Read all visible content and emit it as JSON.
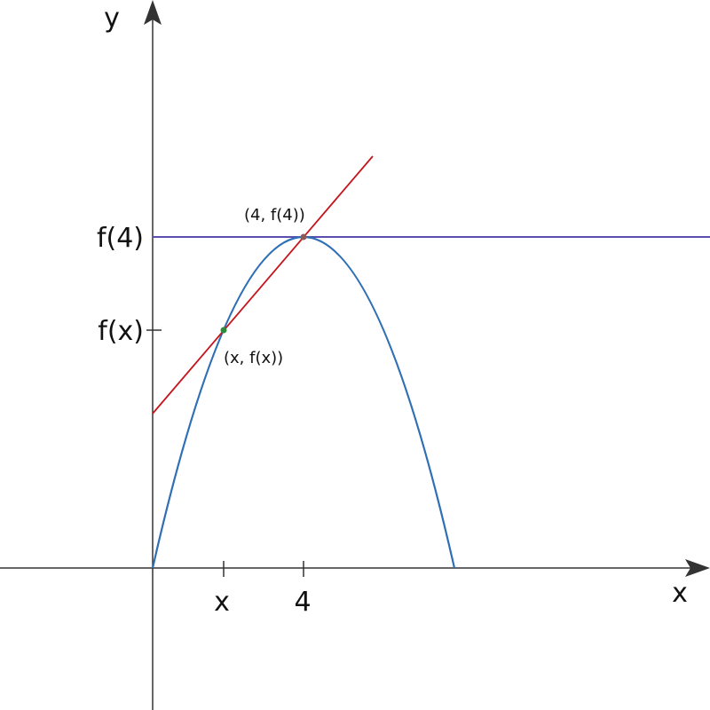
{
  "axes": {
    "x_label": "x",
    "y_label": "y"
  },
  "x_ticks": [
    "x",
    "4"
  ],
  "y_ticks": [
    "f(x)",
    "f(4)"
  ],
  "points": [
    "(x, f(x))",
    "(4, f(4))"
  ]
}
